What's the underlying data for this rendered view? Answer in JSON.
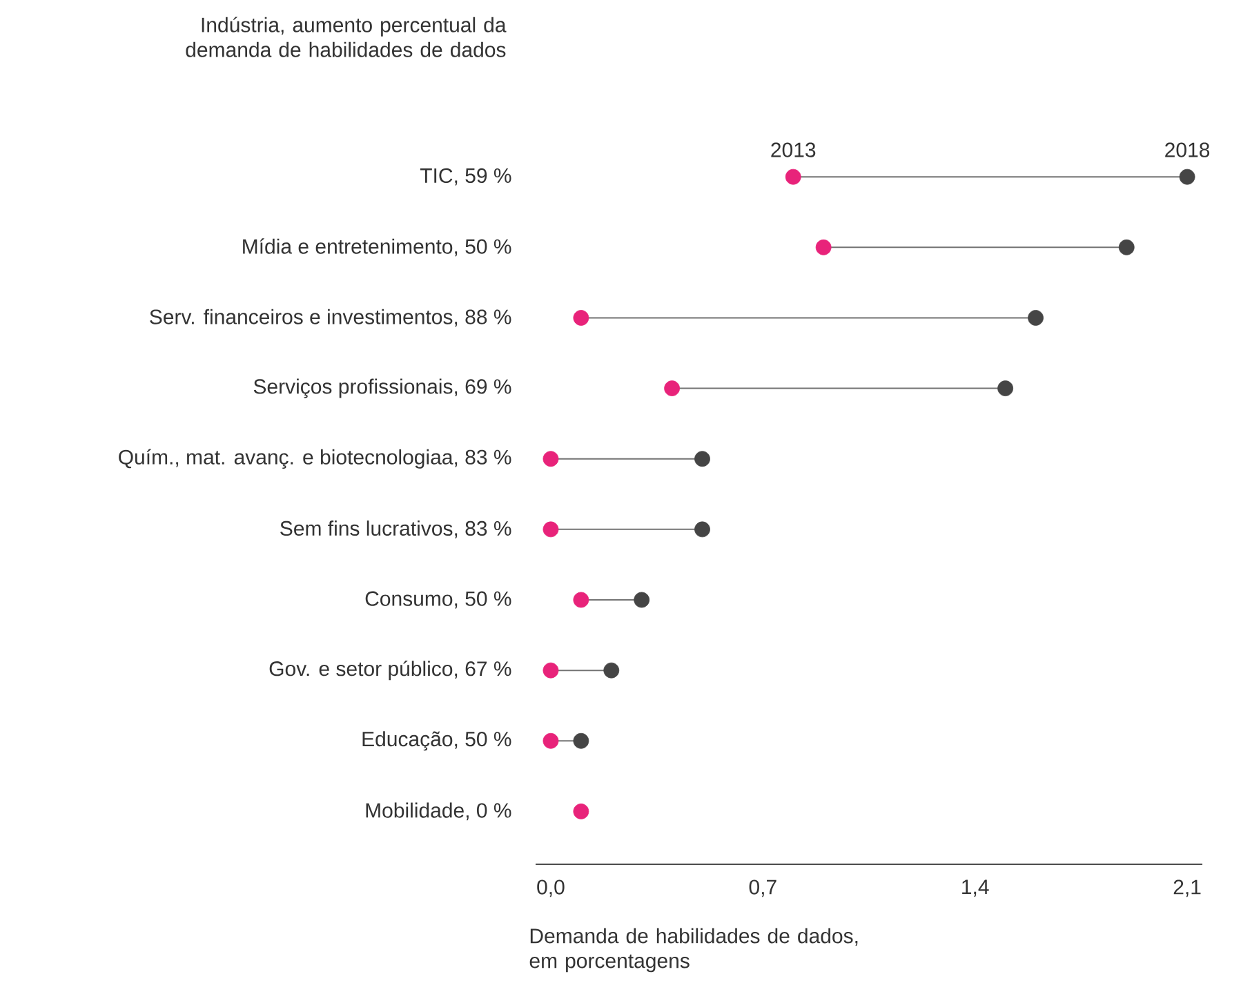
{
  "chart_data": {
    "type": "scatter",
    "orientation": "horizontal",
    "ylabel": "Indústria, aumento percentual da demanda de habilidades de dados",
    "xlabel": "Demanda de habilidades de dados, em porcentagens",
    "categories": [
      "TIC, 59 %",
      "Mídia e entretenimento, 50 %",
      "Serv. financeiros e investimentos, 88 %",
      "Serviços profissionais, 69 %",
      "Quím., mat. avanç. e biotecnologiaa, 83 %",
      "Sem fins lucrativos, 83 %",
      "Consumo, 50 %",
      "Gov. e setor público, 67 %",
      "Educação, 50 %",
      "Mobilidade, 0 %"
    ],
    "series": [
      {
        "name": "2013",
        "color": "#e8237a",
        "values": [
          0.8,
          0.9,
          0.1,
          0.4,
          0.0,
          0.0,
          0.1,
          0.0,
          0.0,
          0.1
        ]
      },
      {
        "name": "2018",
        "color": "#454545",
        "values": [
          2.1,
          1.9,
          1.6,
          1.5,
          0.5,
          0.5,
          0.3,
          0.2,
          0.1,
          null
        ]
      }
    ],
    "xlim": [
      -0.05,
      2.15
    ],
    "xticks": [
      {
        "value": 0,
        "label": "0,0"
      },
      {
        "value": 0.7,
        "label": "0,7"
      },
      {
        "value": 1.4,
        "label": "1,4"
      },
      {
        "value": 2.1,
        "label": "2,1"
      }
    ]
  }
}
